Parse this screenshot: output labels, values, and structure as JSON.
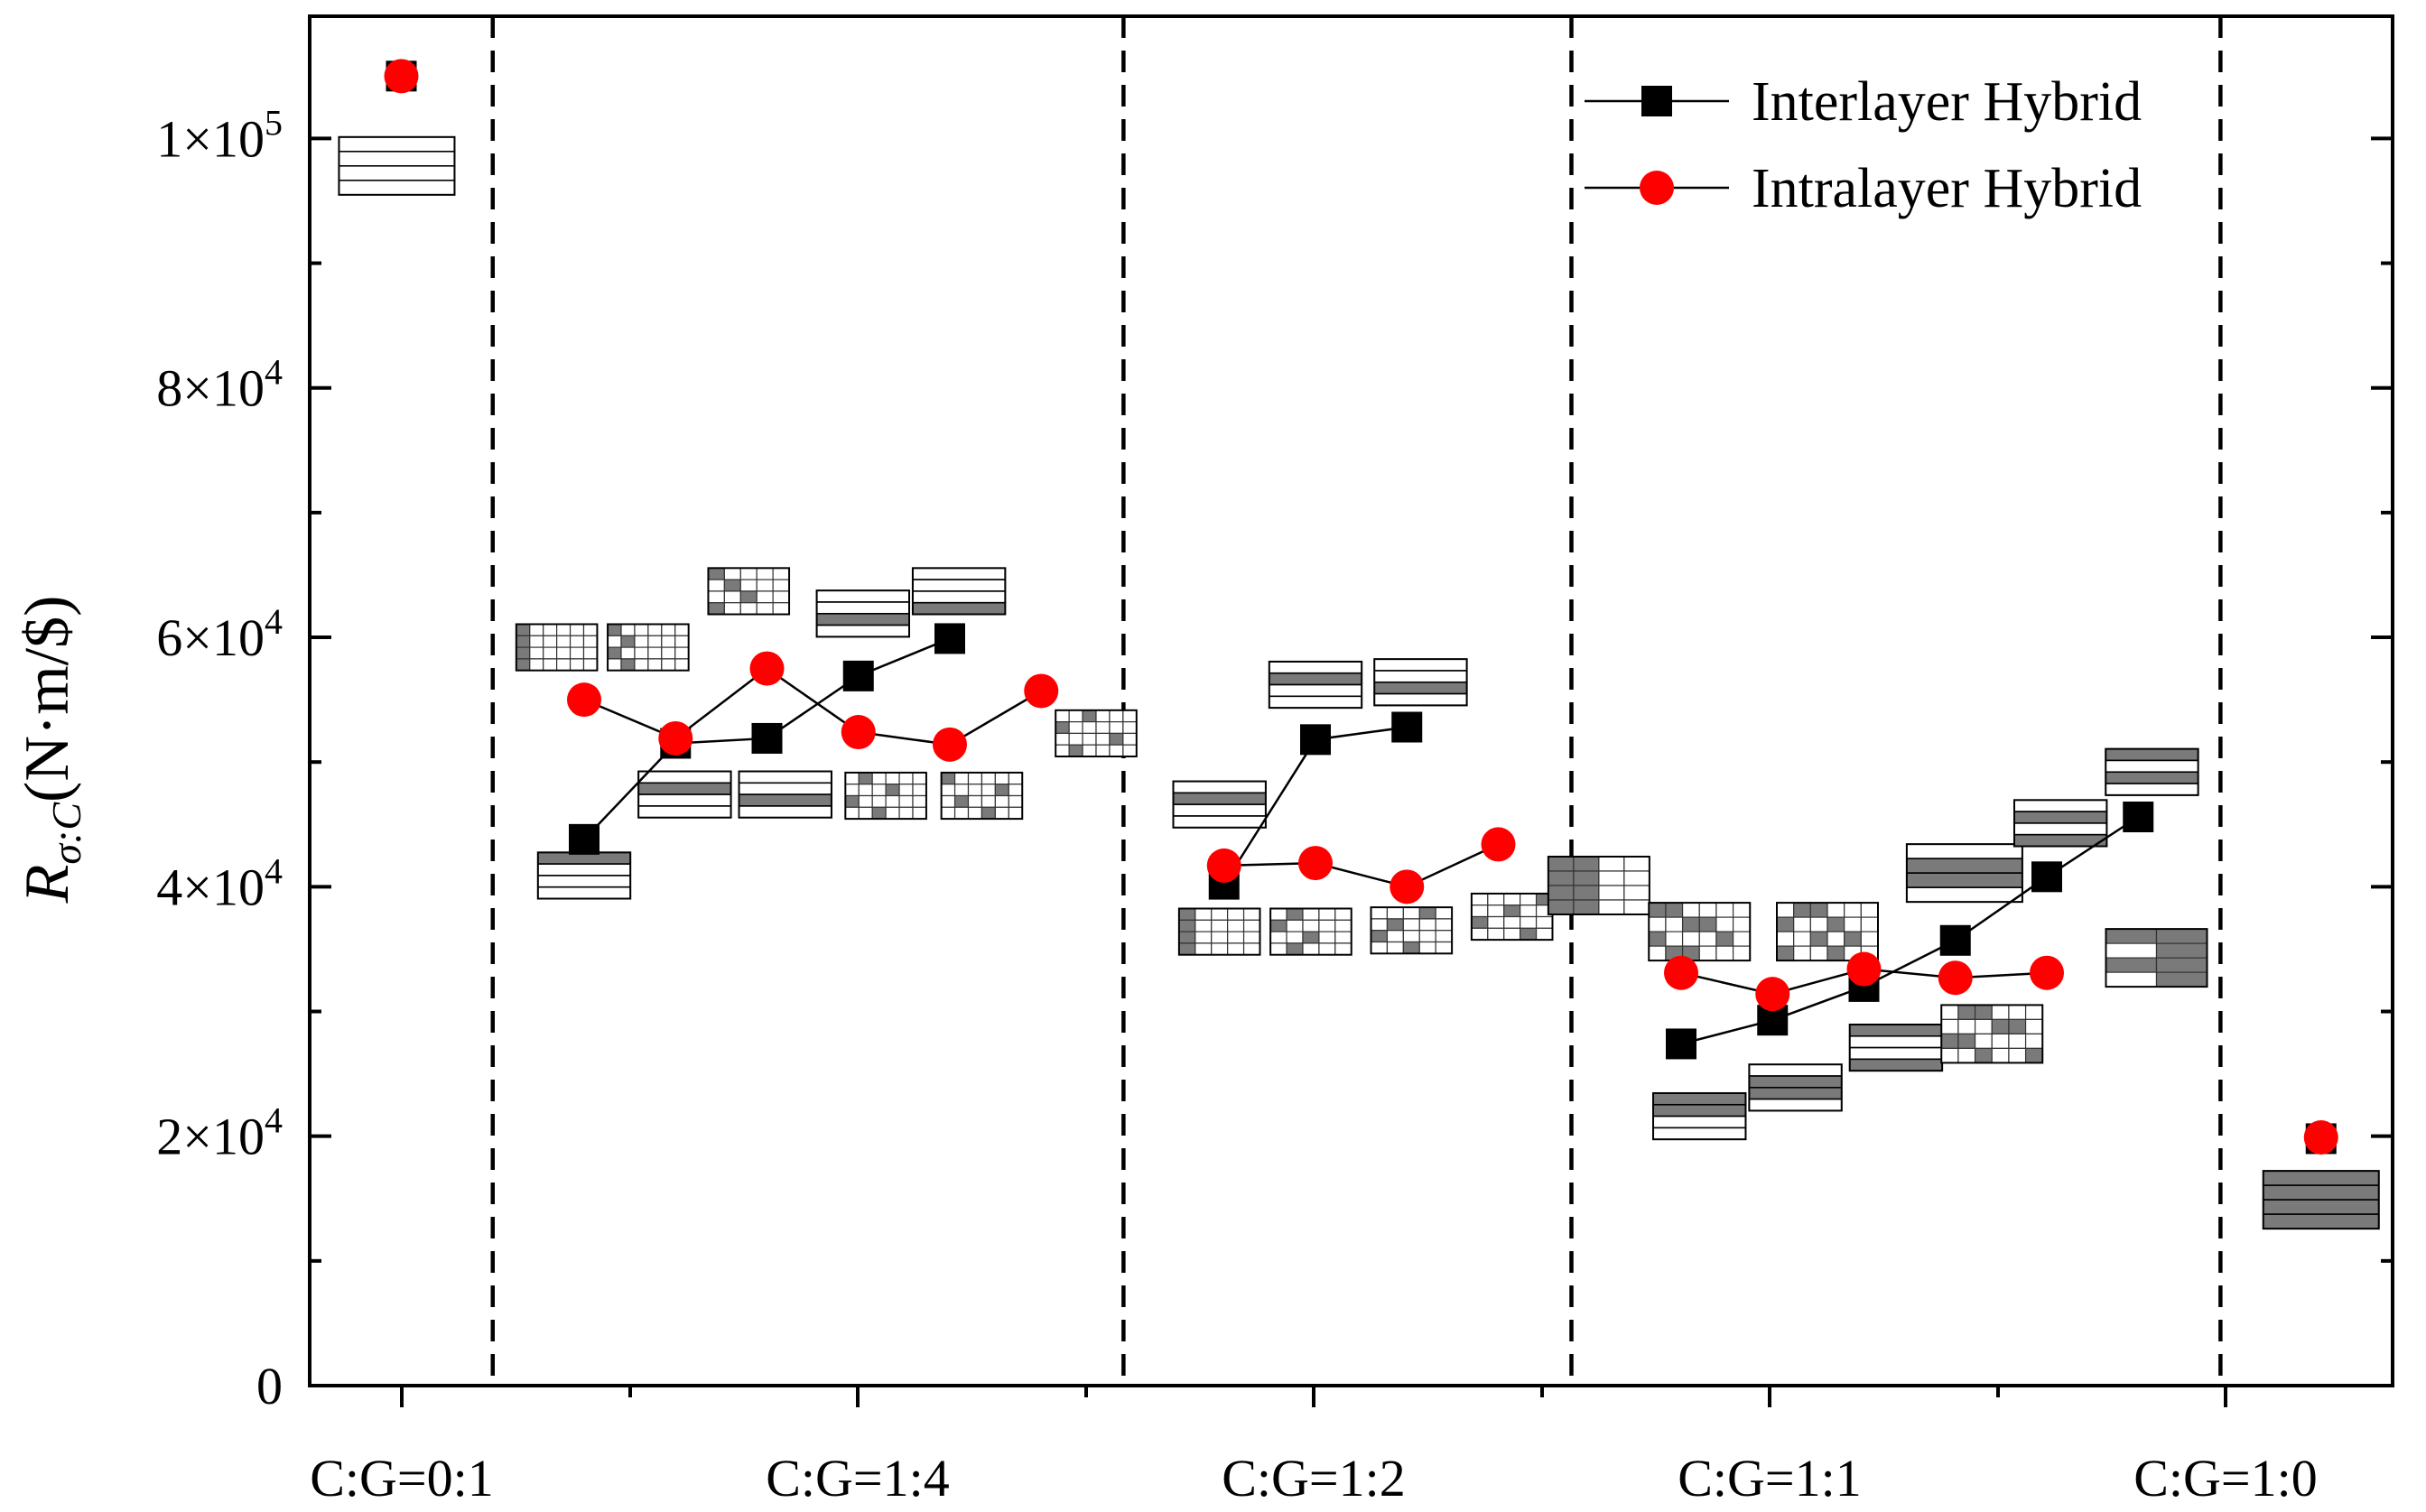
{
  "chart_data": {
    "type": "scatter",
    "title": "",
    "xlabel": "",
    "ylabel": {
      "symbol": "R",
      "subscript": "σ:C",
      "units": "(N·m/$)"
    },
    "ylim": [
      0,
      110000
    ],
    "xlim": [
      -1,
      19.2
    ],
    "y_ticks": [
      0,
      20000,
      40000,
      60000,
      80000,
      100000
    ],
    "y_tick_labels": [
      {
        "mantissa": "0",
        "exponent": ""
      },
      {
        "mantissa": "2×10",
        "exponent": "4"
      },
      {
        "mantissa": "4×10",
        "exponent": "4"
      },
      {
        "mantissa": "6×10",
        "exponent": "4"
      },
      {
        "mantissa": "8×10",
        "exponent": "4"
      },
      {
        "mantissa": "1×10",
        "exponent": "5"
      }
    ],
    "x_tick_positions": [
      0,
      5,
      10,
      15,
      20
    ],
    "x_minor_tick_positions": [
      2.5,
      7.5,
      12.5,
      17.5
    ],
    "x_tick_labels": [
      "C:G=0:1",
      "C:G=1:4",
      "C:G=1:2",
      "C:G=1:1",
      "C:G=1:0"
    ],
    "group_separators": [
      1,
      7.9,
      12.8,
      19.9
    ],
    "legend": {
      "position": "top-right",
      "entries": [
        "Interlayer Hybrid",
        "Intralayer Hybrid"
      ]
    },
    "series": [
      {
        "name": "Interlayer Hybrid",
        "marker": "square",
        "color": "#000000",
        "groups": [
          {
            "x": [
              0
            ],
            "y": [
              105000
            ]
          },
          {
            "x": [
              2,
              3,
              4,
              5,
              6
            ],
            "y": [
              43800,
              51500,
              51900,
              56900,
              59900
            ]
          },
          {
            "x": [
              9,
              10,
              11
            ],
            "y": [
              40200,
              51800,
              52800
            ]
          },
          {
            "x": [
              14,
              15,
              16,
              17,
              18,
              19
            ],
            "y": [
              27400,
              29300,
              32000,
              35700,
              40800,
              45600
            ]
          },
          {
            "x": [
              21
            ],
            "y": [
              19800
            ]
          }
        ]
      },
      {
        "name": "Intralayer Hybrid",
        "marker": "circle",
        "color": "#ff0000",
        "groups": [
          {
            "x": [
              0
            ],
            "y": [
              105000
            ]
          },
          {
            "x": [
              2,
              3,
              4,
              5,
              6,
              7
            ],
            "y": [
              55000,
              51900,
              57500,
              52400,
              51400,
              55700
            ]
          },
          {
            "x": [
              9,
              10,
              11,
              12
            ],
            "y": [
              41700,
              41900,
              40000,
              43400
            ]
          },
          {
            "x": [
              14,
              15,
              16,
              17,
              18
            ],
            "y": [
              33100,
              31400,
              33400,
              32700,
              33100
            ]
          },
          {
            "x": [
              21
            ],
            "y": [
              19900
            ]
          }
        ]
      }
    ],
    "layup_icons": [
      {
        "x": -0.05,
        "y": 97800,
        "kind": "lines",
        "rows": 4,
        "cols": 1,
        "dark": [],
        "scale": 1.0
      },
      {
        "x": 2,
        "y": 40900,
        "kind": "lines",
        "rows": 4,
        "cols": 1,
        "dark": [
          0
        ],
        "scale": 0.8
      },
      {
        "x": 1.7,
        "y": 59200,
        "kind": "grid",
        "rows": 4,
        "cols": 6,
        "dark": [
          [
            0,
            0
          ],
          [
            1,
            0
          ],
          [
            2,
            0
          ],
          [
            3,
            0
          ]
        ],
        "scale": 0.8
      },
      {
        "x": 2.7,
        "y": 59200,
        "kind": "grid",
        "rows": 4,
        "cols": 6,
        "dark": [
          [
            0,
            0
          ],
          [
            1,
            1
          ],
          [
            2,
            0
          ],
          [
            3,
            1
          ]
        ],
        "scale": 0.8
      },
      {
        "x": 3.1,
        "y": 47400,
        "kind": "lines",
        "rows": 4,
        "cols": 1,
        "dark": [
          1
        ],
        "scale": 0.8
      },
      {
        "x": 4.2,
        "y": 47400,
        "kind": "lines",
        "rows": 4,
        "cols": 1,
        "dark": [
          2
        ],
        "scale": 0.8
      },
      {
        "x": 3.8,
        "y": 63700,
        "kind": "grid",
        "rows": 4,
        "cols": 5,
        "dark": [
          [
            0,
            0
          ],
          [
            1,
            1
          ],
          [
            2,
            2
          ],
          [
            3,
            0
          ]
        ],
        "scale": 0.8
      },
      {
        "x": 5.05,
        "y": 61900,
        "kind": "lines",
        "rows": 4,
        "cols": 1,
        "dark": [
          2
        ],
        "scale": 0.8
      },
      {
        "x": 6.1,
        "y": 63700,
        "kind": "lines",
        "rows": 4,
        "cols": 1,
        "dark": [
          3
        ],
        "scale": 0.8
      },
      {
        "x": 5.3,
        "y": 47300,
        "kind": "grid",
        "rows": 4,
        "cols": 6,
        "dark": [
          [
            0,
            1
          ],
          [
            1,
            3
          ],
          [
            2,
            0
          ],
          [
            3,
            2
          ]
        ],
        "scale": 0.8
      },
      {
        "x": 6.35,
        "y": 47300,
        "kind": "grid",
        "rows": 4,
        "cols": 6,
        "dark": [
          [
            0,
            0
          ],
          [
            1,
            4
          ],
          [
            2,
            1
          ],
          [
            3,
            3
          ]
        ],
        "scale": 0.8
      },
      {
        "x": 7.6,
        "y": 52300,
        "kind": "grid",
        "rows": 4,
        "cols": 6,
        "dark": [
          [
            0,
            2
          ],
          [
            1,
            0
          ],
          [
            2,
            4
          ],
          [
            3,
            1
          ]
        ],
        "scale": 0.8
      },
      {
        "x": 8.95,
        "y": 46600,
        "kind": "lines",
        "rows": 4,
        "cols": 1,
        "dark": [
          1
        ],
        "scale": 0.8
      },
      {
        "x": 10,
        "y": 56200,
        "kind": "lines",
        "rows": 4,
        "cols": 1,
        "dark": [
          1
        ],
        "scale": 0.8
      },
      {
        "x": 11.15,
        "y": 56400,
        "kind": "lines",
        "rows": 4,
        "cols": 1,
        "dark": [
          2
        ],
        "scale": 0.8
      },
      {
        "x": 8.95,
        "y": 36400,
        "kind": "grid",
        "rows": 4,
        "cols": 5,
        "dark": [
          [
            0,
            0
          ],
          [
            1,
            0
          ],
          [
            2,
            0
          ],
          [
            3,
            0
          ]
        ],
        "scale": 0.8
      },
      {
        "x": 9.95,
        "y": 36400,
        "kind": "grid",
        "rows": 4,
        "cols": 5,
        "dark": [
          [
            0,
            1
          ],
          [
            1,
            0
          ],
          [
            2,
            2
          ],
          [
            3,
            1
          ]
        ],
        "scale": 0.8
      },
      {
        "x": 11.05,
        "y": 36500,
        "kind": "grid",
        "rows": 4,
        "cols": 5,
        "dark": [
          [
            0,
            3
          ],
          [
            1,
            1
          ],
          [
            2,
            0
          ],
          [
            3,
            2
          ]
        ],
        "scale": 0.8
      },
      {
        "x": 12.15,
        "y": 37600,
        "kind": "grid",
        "rows": 4,
        "cols": 5,
        "dark": [
          [
            0,
            4
          ],
          [
            1,
            2
          ],
          [
            2,
            0
          ],
          [
            3,
            3
          ]
        ],
        "scale": 0.8
      },
      {
        "x": 13.1,
        "y": 40100,
        "kind": "grid",
        "rows": 4,
        "cols": 4,
        "dark": [
          [
            0,
            0
          ],
          [
            1,
            0
          ],
          [
            2,
            0
          ],
          [
            3,
            0
          ],
          [
            0,
            1
          ],
          [
            1,
            1
          ],
          [
            2,
            1
          ],
          [
            3,
            1
          ]
        ],
        "scale": 1.0
      },
      {
        "x": 14.2,
        "y": 36400,
        "kind": "grid",
        "rows": 4,
        "cols": 6,
        "dark": [
          [
            0,
            0
          ],
          [
            0,
            1
          ],
          [
            1,
            2
          ],
          [
            1,
            3
          ],
          [
            2,
            0
          ],
          [
            2,
            4
          ],
          [
            3,
            1
          ],
          [
            3,
            2
          ]
        ],
        "scale": 1.0
      },
      {
        "x": 15.6,
        "y": 36400,
        "kind": "grid",
        "rows": 4,
        "cols": 6,
        "dark": [
          [
            0,
            1
          ],
          [
            0,
            2
          ],
          [
            1,
            0
          ],
          [
            1,
            3
          ],
          [
            2,
            2
          ],
          [
            2,
            4
          ],
          [
            3,
            0
          ],
          [
            3,
            3
          ]
        ],
        "scale": 1.0
      },
      {
        "x": 14.2,
        "y": 21600,
        "kind": "lines",
        "rows": 4,
        "cols": 1,
        "dark": [
          0,
          1
        ],
        "scale": 0.8
      },
      {
        "x": 15.25,
        "y": 23900,
        "kind": "lines",
        "rows": 4,
        "cols": 1,
        "dark": [
          1,
          2
        ],
        "scale": 0.8
      },
      {
        "x": 16.35,
        "y": 27100,
        "kind": "lines",
        "rows": 4,
        "cols": 1,
        "dark": [
          0,
          3
        ],
        "scale": 0.8
      },
      {
        "x": 17.4,
        "y": 28200,
        "kind": "grid",
        "rows": 4,
        "cols": 6,
        "dark": [
          [
            0,
            1
          ],
          [
            0,
            2
          ],
          [
            1,
            3
          ],
          [
            1,
            4
          ],
          [
            2,
            0
          ],
          [
            2,
            1
          ],
          [
            3,
            2
          ],
          [
            3,
            5
          ]
        ],
        "scale": 1.0
      },
      {
        "x": 17.1,
        "y": 41100,
        "kind": "lines",
        "rows": 4,
        "cols": 1,
        "dark": [
          1,
          2
        ],
        "scale": 1.0
      },
      {
        "x": 18.15,
        "y": 45100,
        "kind": "lines",
        "rows": 4,
        "cols": 1,
        "dark": [
          1,
          3
        ],
        "scale": 0.8
      },
      {
        "x": 19.15,
        "y": 49200,
        "kind": "lines",
        "rows": 4,
        "cols": 1,
        "dark": [
          0,
          2
        ],
        "scale": 0.8
      },
      {
        "x": 19.2,
        "y": 34300,
        "kind": "grid",
        "rows": 4,
        "cols": 2,
        "dark": [
          [
            0,
            0
          ],
          [
            1,
            1
          ],
          [
            2,
            0
          ],
          [
            3,
            1
          ],
          [
            0,
            1
          ],
          [
            2,
            1
          ]
        ],
        "scale": 1.0
      },
      {
        "x": 21,
        "y": 14900,
        "kind": "lines",
        "rows": 4,
        "cols": 1,
        "dark": [
          0,
          1,
          2,
          3
        ],
        "scale": 1.0
      }
    ]
  }
}
